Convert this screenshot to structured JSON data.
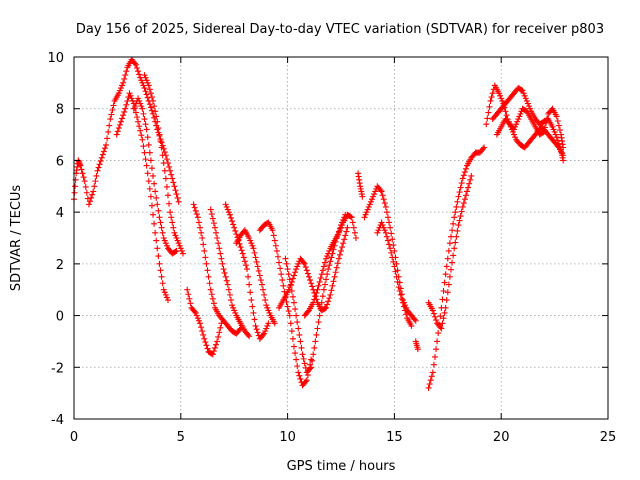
{
  "chart_data": {
    "type": "scatter",
    "title": "Day 156 of 2025, Sidereal Day-to-day VTEC variation (SDTVAR) for receiver p803",
    "xlabel": "GPS time / hours",
    "ylabel": "SDTVAR / TECUs",
    "xlim": [
      0,
      25
    ],
    "ylim": [
      -4,
      10
    ],
    "xticks": [
      0,
      5,
      10,
      15,
      20,
      25
    ],
    "yticks": [
      -4,
      -2,
      0,
      2,
      4,
      6,
      8,
      10
    ],
    "grid": true,
    "marker": "+",
    "color": "#ff0000",
    "series": [
      {
        "tracks": [
          [
            [
              0.0,
              4.5
            ],
            [
              0.1,
              5.5
            ],
            [
              0.2,
              6.0
            ],
            [
              0.3,
              5.8
            ],
            [
              0.5,
              5.2
            ],
            [
              0.7,
              4.3
            ],
            [
              0.9,
              4.8
            ],
            [
              1.1,
              5.6
            ],
            [
              1.3,
              6.1
            ],
            [
              1.5,
              6.6
            ],
            [
              1.7,
              7.6
            ],
            [
              1.9,
              8.3
            ],
            [
              2.1,
              8.6
            ],
            [
              2.3,
              9.0
            ],
            [
              2.5,
              9.6
            ],
            [
              2.7,
              9.9
            ],
            [
              2.9,
              9.7
            ],
            [
              3.1,
              9.2
            ],
            [
              3.3,
              8.8
            ],
            [
              3.5,
              8.3
            ],
            [
              3.7,
              7.8
            ],
            [
              3.9,
              7.2
            ],
            [
              4.1,
              6.7
            ],
            [
              4.3,
              6.2
            ],
            [
              4.5,
              5.6
            ],
            [
              4.7,
              5.0
            ],
            [
              4.9,
              4.4
            ]
          ],
          [
            [
              2.0,
              7.0
            ],
            [
              2.2,
              7.5
            ],
            [
              2.4,
              8.0
            ],
            [
              2.6,
              8.6
            ],
            [
              2.8,
              8.2
            ],
            [
              3.0,
              7.5
            ],
            [
              3.2,
              6.8
            ],
            [
              3.4,
              5.8
            ],
            [
              3.6,
              4.6
            ],
            [
              3.8,
              3.2
            ],
            [
              4.0,
              2.0
            ],
            [
              4.2,
              1.0
            ],
            [
              4.4,
              0.6
            ]
          ],
          [
            [
              3.3,
              9.3
            ],
            [
              3.5,
              8.9
            ],
            [
              3.7,
              8.3
            ],
            [
              3.9,
              7.5
            ],
            [
              4.1,
              6.5
            ],
            [
              4.3,
              5.3
            ],
            [
              4.5,
              4.0
            ],
            [
              4.7,
              3.2
            ],
            [
              4.9,
              2.8
            ],
            [
              5.1,
              2.4
            ]
          ],
          [
            [
              2.8,
              8.0
            ],
            [
              3.0,
              8.4
            ],
            [
              3.2,
              8.0
            ],
            [
              3.4,
              7.2
            ],
            [
              3.6,
              6.0
            ],
            [
              3.8,
              4.8
            ],
            [
              4.0,
              3.8
            ],
            [
              4.2,
              3.0
            ],
            [
              4.4,
              2.6
            ],
            [
              4.6,
              2.4
            ],
            [
              4.8,
              2.5
            ]
          ],
          [
            [
              5.3,
              1.0
            ],
            [
              5.5,
              0.3
            ],
            [
              5.7,
              0.1
            ],
            [
              5.9,
              -0.3
            ],
            [
              6.1,
              -0.9
            ],
            [
              6.3,
              -1.4
            ],
            [
              6.5,
              -1.5
            ],
            [
              6.7,
              -1.0
            ],
            [
              6.9,
              -0.3
            ]
          ],
          [
            [
              5.6,
              4.3
            ],
            [
              5.8,
              3.8
            ],
            [
              6.0,
              3.0
            ],
            [
              6.2,
              2.0
            ],
            [
              6.4,
              1.0
            ],
            [
              6.6,
              0.3
            ],
            [
              6.8,
              0.0
            ],
            [
              7.0,
              -0.2
            ],
            [
              7.2,
              -0.4
            ],
            [
              7.4,
              -0.6
            ],
            [
              7.6,
              -0.7
            ],
            [
              7.8,
              -0.5
            ]
          ],
          [
            [
              6.4,
              4.1
            ],
            [
              6.6,
              3.4
            ],
            [
              6.8,
              2.6
            ],
            [
              7.0,
              1.8
            ],
            [
              7.2,
              1.2
            ],
            [
              7.4,
              0.4
            ],
            [
              7.6,
              0.0
            ],
            [
              7.8,
              -0.3
            ],
            [
              8.0,
              -0.6
            ],
            [
              8.2,
              -0.8
            ]
          ],
          [
            [
              7.6,
              2.8
            ],
            [
              7.8,
              3.1
            ],
            [
              8.0,
              3.3
            ],
            [
              8.2,
              3.0
            ],
            [
              8.4,
              2.6
            ],
            [
              8.6,
              1.9
            ],
            [
              8.8,
              1.2
            ],
            [
              9.0,
              0.4
            ],
            [
              9.2,
              0.0
            ],
            [
              9.4,
              -0.3
            ]
          ],
          [
            [
              7.1,
              4.3
            ],
            [
              7.3,
              3.9
            ],
            [
              7.5,
              3.4
            ],
            [
              7.7,
              2.9
            ],
            [
              7.9,
              2.4
            ],
            [
              8.1,
              1.8
            ],
            [
              8.3,
              0.6
            ],
            [
              8.5,
              -0.4
            ],
            [
              8.7,
              -0.9
            ],
            [
              8.9,
              -0.7
            ],
            [
              9.1,
              -0.3
            ]
          ],
          [
            [
              8.7,
              3.3
            ],
            [
              8.9,
              3.5
            ],
            [
              9.1,
              3.6
            ],
            [
              9.3,
              3.3
            ],
            [
              9.5,
              2.5
            ],
            [
              9.7,
              1.6
            ],
            [
              9.9,
              0.7
            ],
            [
              10.1,
              0.0
            ],
            [
              10.3,
              -1.2
            ],
            [
              10.5,
              -2.2
            ],
            [
              10.7,
              -2.7
            ],
            [
              10.9,
              -2.5
            ],
            [
              11.1,
              -1.7
            ]
          ],
          [
            [
              9.9,
              2.2
            ],
            [
              10.1,
              1.4
            ],
            [
              10.3,
              0.5
            ],
            [
              10.5,
              -0.5
            ],
            [
              10.7,
              -1.5
            ],
            [
              10.9,
              -2.2
            ],
            [
              11.1,
              -2.0
            ],
            [
              11.3,
              -1.0
            ],
            [
              11.5,
              0.0
            ],
            [
              11.7,
              1.0
            ],
            [
              11.9,
              1.8
            ],
            [
              12.1,
              2.4
            ],
            [
              12.3,
              3.0
            ],
            [
              12.5,
              3.5
            ],
            [
              12.7,
              3.9
            ]
          ],
          [
            [
              9.6,
              0.3
            ],
            [
              9.8,
              0.6
            ],
            [
              10.0,
              0.9
            ],
            [
              10.2,
              1.3
            ],
            [
              10.4,
              1.8
            ],
            [
              10.6,
              2.2
            ],
            [
              10.8,
              2.0
            ],
            [
              11.0,
              1.5
            ],
            [
              11.2,
              1.0
            ],
            [
              11.4,
              0.5
            ],
            [
              11.6,
              0.2
            ],
            [
              11.8,
              0.3
            ],
            [
              12.0,
              0.8
            ],
            [
              12.2,
              1.5
            ],
            [
              12.4,
              2.2
            ],
            [
              12.6,
              2.8
            ],
            [
              12.8,
              3.4
            ]
          ],
          [
            [
              10.8,
              0.0
            ],
            [
              11.0,
              0.2
            ],
            [
              11.2,
              0.5
            ],
            [
              11.4,
              1.0
            ],
            [
              11.6,
              1.6
            ],
            [
              11.8,
              2.2
            ],
            [
              12.0,
              2.6
            ],
            [
              12.2,
              2.9
            ],
            [
              12.4,
              3.2
            ],
            [
              12.6,
              3.6
            ],
            [
              12.8,
              3.9
            ],
            [
              13.0,
              3.8
            ],
            [
              13.2,
              3.0
            ]
          ],
          [
            [
              13.3,
              5.5
            ],
            [
              13.4,
              5.0
            ],
            [
              13.5,
              4.6
            ]
          ],
          [
            [
              13.6,
              3.8
            ],
            [
              13.8,
              4.2
            ],
            [
              14.0,
              4.6
            ],
            [
              14.2,
              5.0
            ],
            [
              14.4,
              4.8
            ],
            [
              14.6,
              4.2
            ],
            [
              14.8,
              3.4
            ],
            [
              15.0,
              2.5
            ],
            [
              15.2,
              1.5
            ],
            [
              15.4,
              0.6
            ],
            [
              15.6,
              0.2
            ],
            [
              15.8,
              0.0
            ],
            [
              16.0,
              -0.2
            ]
          ],
          [
            [
              14.2,
              3.2
            ],
            [
              14.4,
              3.6
            ],
            [
              14.6,
              3.2
            ],
            [
              14.8,
              2.6
            ],
            [
              15.0,
              1.9
            ],
            [
              15.2,
              1.1
            ],
            [
              15.4,
              0.5
            ],
            [
              15.6,
              -0.1
            ],
            [
              15.8,
              -0.4
            ]
          ],
          [
            [
              16.0,
              -1.0
            ],
            [
              16.1,
              -1.3
            ]
          ],
          [
            [
              16.6,
              -2.8
            ],
            [
              16.8,
              -2.2
            ],
            [
              17.0,
              -1.0
            ],
            [
              17.2,
              0.3
            ],
            [
              17.4,
              1.6
            ],
            [
              17.6,
              2.8
            ],
            [
              17.8,
              3.8
            ],
            [
              18.0,
              4.6
            ],
            [
              18.2,
              5.3
            ],
            [
              18.4,
              5.8
            ],
            [
              18.6,
              6.1
            ],
            [
              18.8,
              6.3
            ],
            [
              19.0,
              6.3
            ],
            [
              19.2,
              6.5
            ]
          ],
          [
            [
              16.6,
              0.5
            ],
            [
              16.8,
              0.2
            ],
            [
              17.0,
              -0.3
            ],
            [
              17.2,
              -0.5
            ],
            [
              17.4,
              0.3
            ],
            [
              17.6,
              1.5
            ],
            [
              17.8,
              2.6
            ],
            [
              18.0,
              3.5
            ],
            [
              18.2,
              4.2
            ],
            [
              18.4,
              4.8
            ],
            [
              18.6,
              5.4
            ]
          ],
          [
            [
              19.3,
              7.4
            ],
            [
              19.5,
              8.3
            ],
            [
              19.7,
              8.9
            ],
            [
              19.9,
              8.6
            ],
            [
              20.1,
              8.2
            ],
            [
              20.3,
              7.6
            ],
            [
              20.5,
              7.2
            ],
            [
              20.7,
              6.8
            ],
            [
              20.9,
              6.6
            ],
            [
              21.1,
              6.5
            ],
            [
              21.3,
              6.7
            ],
            [
              21.5,
              6.9
            ],
            [
              21.7,
              7.1
            ],
            [
              21.9,
              7.3
            ],
            [
              22.1,
              7.1
            ],
            [
              22.3,
              6.9
            ],
            [
              22.5,
              6.7
            ],
            [
              22.7,
              6.5
            ],
            [
              22.9,
              6.2
            ]
          ],
          [
            [
              19.6,
              7.6
            ],
            [
              19.8,
              7.8
            ],
            [
              20.0,
              8.0
            ],
            [
              20.2,
              8.2
            ],
            [
              20.4,
              8.4
            ],
            [
              20.6,
              8.6
            ],
            [
              20.8,
              8.8
            ],
            [
              21.0,
              8.7
            ],
            [
              21.2,
              8.3
            ],
            [
              21.4,
              7.9
            ],
            [
              21.6,
              7.6
            ],
            [
              21.8,
              7.4
            ],
            [
              22.0,
              7.5
            ],
            [
              22.2,
              7.6
            ],
            [
              22.4,
              7.3
            ],
            [
              22.6,
              6.9
            ],
            [
              22.8,
              6.4
            ],
            [
              22.9,
              6.0
            ]
          ],
          [
            [
              19.8,
              7.0
            ],
            [
              20.0,
              7.3
            ],
            [
              20.2,
              7.6
            ],
            [
              20.4,
              7.4
            ],
            [
              20.6,
              7.2
            ],
            [
              20.8,
              7.6
            ],
            [
              21.0,
              8.0
            ],
            [
              21.2,
              7.9
            ],
            [
              21.4,
              7.6
            ],
            [
              21.6,
              7.3
            ],
            [
              21.8,
              7.0
            ],
            [
              22.0,
              7.1
            ],
            [
              22.2,
              7.8
            ],
            [
              22.4,
              8.0
            ],
            [
              22.6,
              7.7
            ],
            [
              22.8,
              7.0
            ],
            [
              22.9,
              6.5
            ]
          ]
        ]
      }
    ]
  }
}
